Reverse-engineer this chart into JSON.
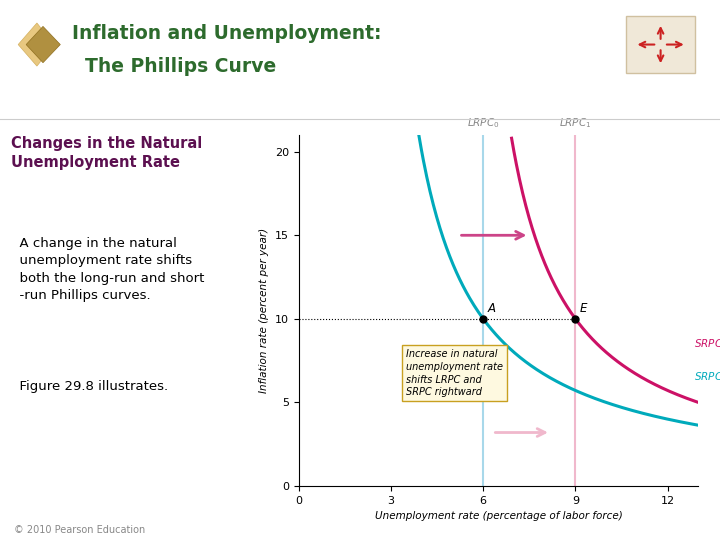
{
  "title_line1": "Inflation and Unemployment:",
  "title_line2": "  The Phillips Curve",
  "subtitle": "Changes in the Natural\nUnemployment Rate",
  "body_text": "  A change in the natural\n  unemployment rate shifts\n  both the long-run and short\n  -run Phillips curves.",
  "figure_text": "  Figure 29.8 illustrates.",
  "footer": "© 2010 Pearson Education",
  "xlabel": "Unemployment rate (percentage of labor force)",
  "ylabel": "Inflation rate (percent per year)",
  "xlim": [
    0,
    13
  ],
  "ylim": [
    0,
    21
  ],
  "xticks": [
    0,
    3,
    6,
    9,
    12
  ],
  "yticks": [
    0,
    5,
    10,
    15,
    20
  ],
  "lrpc0_x": 6,
  "lrpc1_x": 9,
  "lrpc0_color": "#a8d8ea",
  "lrpc1_color": "#f0b8cc",
  "srpc0_color": "#00aabb",
  "srpc1_color": "#cc1166",
  "point_A": [
    6,
    10
  ],
  "point_E": [
    9,
    10
  ],
  "title_color": "#2d6b2d",
  "subtitle_color": "#5c1050",
  "bg_color": "#ffffff",
  "box_text": "Increase in natural\nunemployment rate\nshifts LRPC and\nSRPC rightward",
  "box_facecolor": "#fef9e0",
  "box_edgecolor": "#c8a020",
  "icon_color1": "#e8c880",
  "icon_color2": "#b09040",
  "cross_bg": "#f0e8d8",
  "cross_color": "#cc2222"
}
